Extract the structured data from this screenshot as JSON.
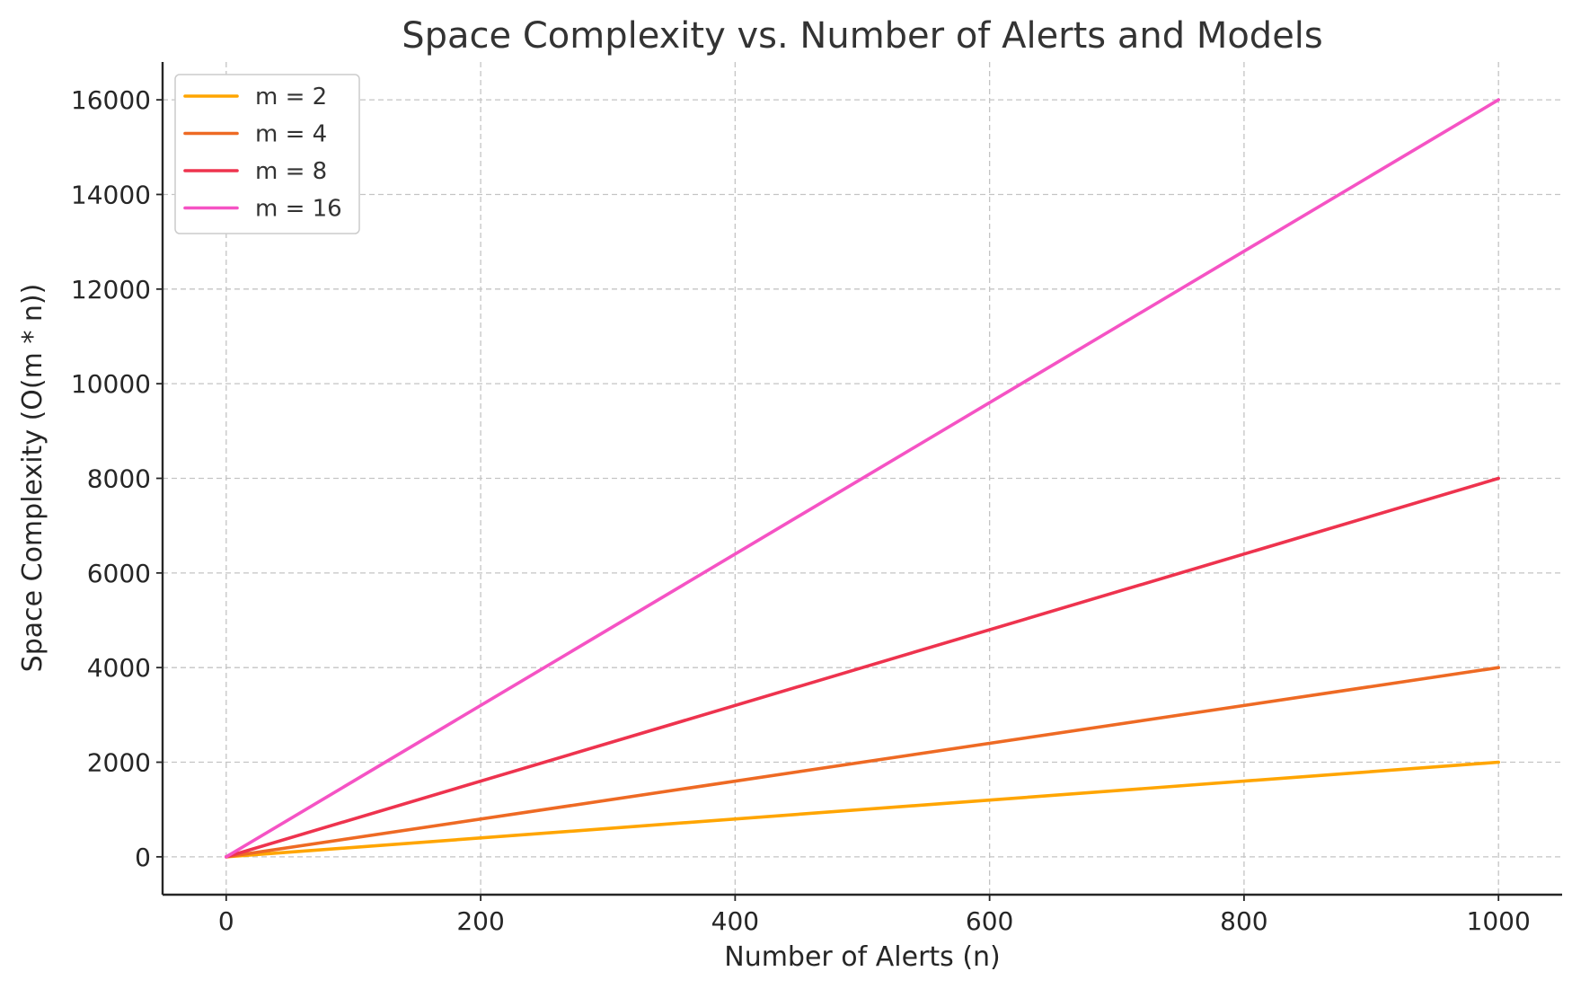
{
  "chart_data": {
    "type": "line",
    "title": "Space Complexity vs. Number of Alerts and Models",
    "xlabel": "Number of Alerts (n)",
    "ylabel": "Space Complexity (O(m * n))",
    "xlim": [
      -50,
      1050
    ],
    "ylim": [
      -800,
      16800
    ],
    "xticks": [
      0,
      200,
      400,
      600,
      800,
      1000
    ],
    "yticks": [
      0,
      2000,
      4000,
      6000,
      8000,
      10000,
      12000,
      14000,
      16000
    ],
    "grid": true,
    "legend_position": "top-left",
    "series": [
      {
        "name": "m = 2",
        "color": "#FFA500",
        "x": [
          0,
          1000
        ],
        "y": [
          0,
          2000
        ]
      },
      {
        "name": "m = 4",
        "color": "#EE6A24",
        "x": [
          0,
          1000
        ],
        "y": [
          0,
          4000
        ]
      },
      {
        "name": "m = 8",
        "color": "#EE334E",
        "x": [
          0,
          1000
        ],
        "y": [
          0,
          8000
        ]
      },
      {
        "name": "m = 16",
        "color": "#F553C4",
        "x": [
          0,
          1000
        ],
        "y": [
          0,
          16000
        ]
      }
    ]
  }
}
